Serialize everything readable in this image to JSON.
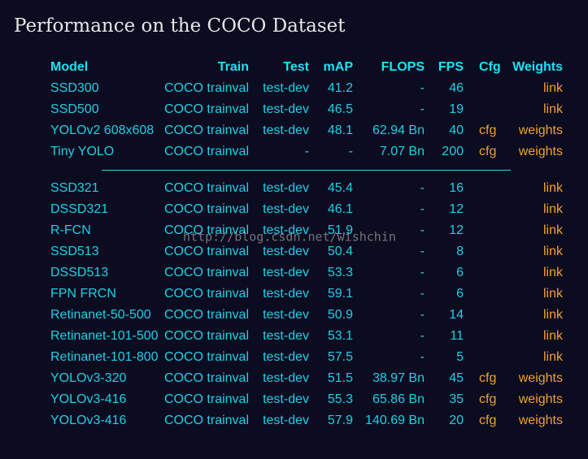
{
  "title": "Performance on the COCO Dataset",
  "table": {
    "header": {
      "model": "Model",
      "train": "Train",
      "test": "Test",
      "map": "mAP",
      "flops": "FLOPS",
      "fps": "FPS",
      "cfg": "Cfg",
      "weights": "Weights"
    },
    "groups": [
      {
        "rows": [
          {
            "model": "SSD300",
            "train": "COCO trainval",
            "test": "test-dev",
            "map": "41.2",
            "flops": "-",
            "fps": "46",
            "weights": "link"
          },
          {
            "model": "SSD500",
            "train": "COCO trainval",
            "test": "test-dev",
            "map": "46.5",
            "flops": "-",
            "fps": "19",
            "weights": "link"
          },
          {
            "model": "YOLOv2 608x608",
            "train": "COCO trainval",
            "test": "test-dev",
            "map": "48.1",
            "flops": "62.94 Bn",
            "fps": "40",
            "cfg": "cfg",
            "weights": "weights"
          },
          {
            "model": "Tiny YOLO",
            "train": "COCO trainval",
            "test": "-",
            "map": "-",
            "flops": "7.07 Bn",
            "fps": "200",
            "cfg": "cfg",
            "weights": "weights"
          }
        ]
      },
      {
        "rows": [
          {
            "model": "SSD321",
            "train": "COCO trainval",
            "test": "test-dev",
            "map": "45.4",
            "flops": "-",
            "fps": "16",
            "weights": "link"
          },
          {
            "model": "DSSD321",
            "train": "COCO trainval",
            "test": "test-dev",
            "map": "46.1",
            "flops": "-",
            "fps": "12",
            "weights": "link"
          },
          {
            "model": "R-FCN",
            "train": "COCO trainval",
            "test": "test-dev",
            "map": "51.9",
            "flops": "-",
            "fps": "12",
            "weights": "link"
          },
          {
            "model": "SSD513",
            "train": "COCO trainval",
            "test": "test-dev",
            "map": "50.4",
            "flops": "-",
            "fps": "8",
            "weights": "link"
          },
          {
            "model": "DSSD513",
            "train": "COCO trainval",
            "test": "test-dev",
            "map": "53.3",
            "flops": "-",
            "fps": "6",
            "weights": "link"
          },
          {
            "model": "FPN FRCN",
            "train": "COCO trainval",
            "test": "test-dev",
            "map": "59.1",
            "flops": "-",
            "fps": "6",
            "weights": "link"
          },
          {
            "model": "Retinanet-50-500",
            "train": "COCO trainval",
            "test": "test-dev",
            "map": "50.9",
            "flops": "-",
            "fps": "14",
            "weights": "link"
          },
          {
            "model": "Retinanet-101-500",
            "train": "COCO trainval",
            "test": "test-dev",
            "map": "53.1",
            "flops": "-",
            "fps": "11",
            "weights": "link"
          },
          {
            "model": "Retinanet-101-800",
            "train": "COCO trainval",
            "test": "test-dev",
            "map": "57.5",
            "flops": "-",
            "fps": "5",
            "weights": "link"
          },
          {
            "model": "YOLOv3-320",
            "train": "COCO trainval",
            "test": "test-dev",
            "map": "51.5",
            "flops": "38.97 Bn",
            "fps": "45",
            "cfg": "cfg",
            "weights": "weights"
          },
          {
            "model": "YOLOv3-416",
            "train": "COCO trainval",
            "test": "test-dev",
            "map": "55.3",
            "flops": "65.86 Bn",
            "fps": "35",
            "cfg": "cfg",
            "weights": "weights"
          },
          {
            "model": "YOLOv3-416",
            "train": "COCO trainval",
            "test": "test-dev",
            "map": "57.9",
            "flops": "140.69 Bn",
            "fps": "20",
            "cfg": "cfg",
            "weights": "weights"
          }
        ]
      }
    ]
  },
  "watermark": "http://blog.csdn.net/wishchin"
}
